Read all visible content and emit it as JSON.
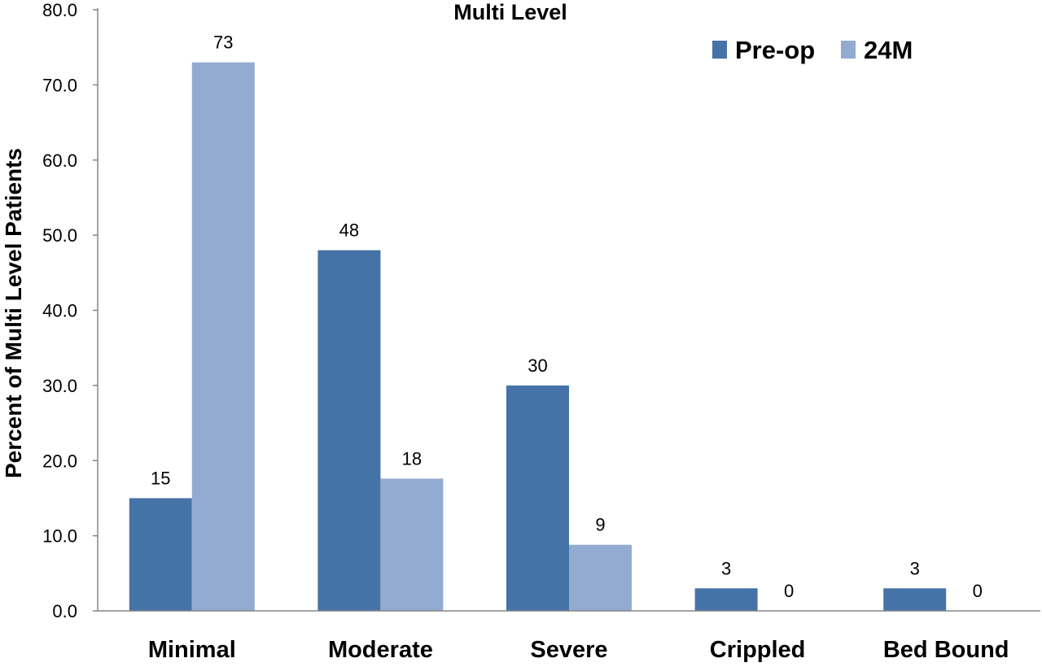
{
  "chart_data": {
    "type": "bar",
    "title": "Multi Level",
    "xlabel": "",
    "ylabel": "Percent of Multi Level Patients",
    "categories": [
      "Minimal",
      "Moderate",
      "Severe",
      "Crippled",
      "Bed Bound"
    ],
    "series": [
      {
        "name": "Pre-op",
        "color": "#4673a7",
        "values": [
          15,
          48,
          30,
          3,
          3
        ],
        "labels": [
          "15",
          "48",
          "30",
          "3",
          "3"
        ]
      },
      {
        "name": "24M",
        "color": "#94abd1",
        "values": [
          73,
          17.6,
          8.8,
          0,
          0
        ],
        "labels": [
          "73",
          "18",
          "9",
          "0",
          "0"
        ]
      }
    ],
    "ylim": [
      0,
      80
    ],
    "yticks": [
      "0.0",
      "10.0",
      "20.0",
      "30.0",
      "40.0",
      "50.0",
      "60.0",
      "70.0",
      "80.0"
    ],
    "grid": false,
    "legend_position": "top-right"
  }
}
